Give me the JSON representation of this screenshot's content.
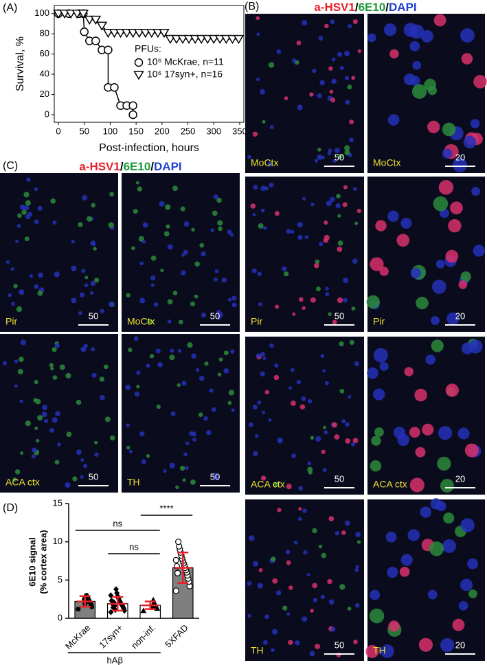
{
  "panel_labels": [
    "(A)",
    "(B)",
    "(C)",
    "(D)"
  ],
  "stain_title": [
    {
      "text": "a-HSV1",
      "color": "#e8202a"
    },
    {
      "text": "/",
      "color": "#000000"
    },
    {
      "text": "6E10",
      "color": "#1a9a3a"
    },
    {
      "text": "/",
      "color": "#000000"
    },
    {
      "text": "DAPI",
      "color": "#1f3fd0"
    }
  ],
  "panel_b_images": [
    {
      "region": "MoCtx",
      "scale": 50
    },
    {
      "region": "MoCtx",
      "scale": 20
    },
    {
      "region": "Pir",
      "scale": 50
    },
    {
      "region": "Pir",
      "scale": 20
    },
    {
      "region": "ACA ctx",
      "scale": 50
    },
    {
      "region": "ACA ctx",
      "scale": 20
    },
    {
      "region": "TH",
      "scale": 50
    },
    {
      "region": "TH",
      "scale": 20
    }
  ],
  "panel_c_images": [
    {
      "region": "Pir",
      "scale": 50
    },
    {
      "region": "MoCtx",
      "scale": 50
    },
    {
      "region": "ACA ctx",
      "scale": 50
    },
    {
      "region": "TH",
      "scale": 50
    }
  ],
  "chart_data": [
    {
      "type": "line",
      "xlabel": "Post-infection, hours",
      "ylabel": "Survival, %",
      "legend_title": "PFUs:",
      "xlim": [
        -8,
        358
      ],
      "ylim": [
        -7.5,
        108
      ],
      "xticks": [
        0,
        50,
        100,
        150,
        200,
        250,
        300,
        350
      ],
      "yticks": [
        0,
        20,
        40,
        60,
        80,
        100
      ],
      "series": [
        {
          "name": "10⁶ McKrae, n=11",
          "marker": "circle",
          "color": "#000000",
          "x": [
            0,
            20,
            40,
            48,
            50,
            60,
            72,
            84,
            96,
            96,
            108,
            120,
            132,
            144,
            144
          ],
          "values": [
            100,
            100,
            100,
            100,
            82,
            73,
            73,
            64,
            64,
            27,
            27,
            9,
            9,
            9,
            0
          ]
        },
        {
          "name": "10⁶ 17syn+,  n=16",
          "marker": "triangle-down",
          "color": "#000000",
          "x": [
            0,
            12,
            24,
            36,
            48,
            60,
            72,
            84,
            96,
            108,
            120,
            132,
            144,
            156,
            168,
            180,
            192,
            204,
            216,
            228,
            240,
            252,
            264,
            276,
            288,
            300,
            312,
            324,
            336,
            348
          ],
          "values": [
            100,
            100,
            100,
            100,
            100,
            94,
            94,
            88,
            81,
            81,
            81,
            81,
            81,
            81,
            81,
            81,
            81,
            81,
            75,
            75,
            75,
            75,
            75,
            75,
            75,
            75,
            75,
            75,
            75,
            75
          ]
        }
      ]
    },
    {
      "type": "bar",
      "ylabel": [
        "6E10 signal",
        "(% cortex area)"
      ],
      "categories": [
        "McKrae",
        "17syn+",
        "non-inf.",
        "5XFAD"
      ],
      "values": [
        2.2,
        1.9,
        1.7,
        6.6
      ],
      "errors": [
        0.7,
        0.9,
        0.5,
        2.0
      ],
      "colors": [
        "#7f7f7f",
        "#ffffff",
        "#ffffff",
        "#7f7f7f"
      ],
      "error_color": "#e8202a",
      "point_markers": [
        "circle",
        "diamond",
        "triangle",
        "open-circle"
      ],
      "points": [
        [
          1.2,
          1.5,
          1.8,
          2.0,
          2.2,
          2.4,
          2.6,
          2.8,
          3.0,
          2.1,
          1.9,
          2.5
        ],
        [
          0.8,
          1.0,
          1.3,
          1.5,
          1.7,
          1.8,
          2.0,
          2.2,
          2.4,
          2.6,
          2.9,
          3.3,
          3.8,
          1.1,
          1.6,
          2.1,
          1.4,
          1.9,
          2.3,
          3.0
        ],
        [
          1.0,
          1.3,
          1.5,
          1.7,
          1.9,
          2.1,
          2.4,
          1.6
        ],
        [
          3.6,
          4.2,
          4.8,
          5.2,
          5.6,
          6.0,
          6.3,
          6.6,
          6.9,
          7.2,
          7.5,
          7.8,
          8.2,
          8.6,
          9.0,
          9.4,
          10.0,
          5.9,
          6.8,
          7.6
        ]
      ],
      "ylim": [
        0,
        15
      ],
      "yticks": [
        0,
        5,
        10,
        15
      ],
      "group_label": "hAβ",
      "annotations": [
        "ns",
        "ns",
        "****"
      ]
    }
  ]
}
